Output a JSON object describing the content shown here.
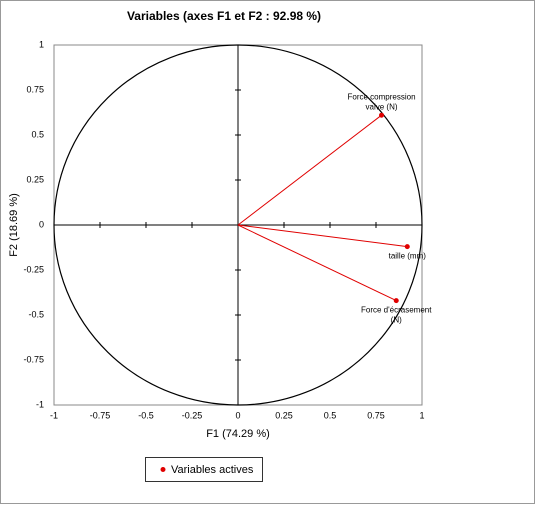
{
  "chart_data": {
    "type": "scatter",
    "title": "Variables (axes F1 et F2 : 92.98 %)",
    "xlabel": "F1 (74.29 %)",
    "ylabel": "F2 (18.69 %)",
    "series": [
      {
        "name": "Variables actives",
        "color": "#e00000",
        "x": [
          0.78,
          0.92,
          0.86
        ],
        "values": [
          0.61,
          -0.12,
          -0.42
        ]
      }
    ],
    "point_labels": [
      [
        "Force compression",
        "valve (N)"
      ],
      [
        "taille (mm)"
      ],
      [
        "Force d'écrasement",
        "(N)"
      ]
    ],
    "xlim": [
      -1,
      1
    ],
    "ylim": [
      -1,
      1
    ],
    "xticks": [
      -1,
      -0.75,
      -0.5,
      -0.25,
      0,
      0.25,
      0.5,
      0.75,
      1
    ],
    "yticks": [
      -1,
      -0.75,
      -0.5,
      -0.25,
      0,
      0.25,
      0.5,
      0.75,
      1
    ]
  }
}
